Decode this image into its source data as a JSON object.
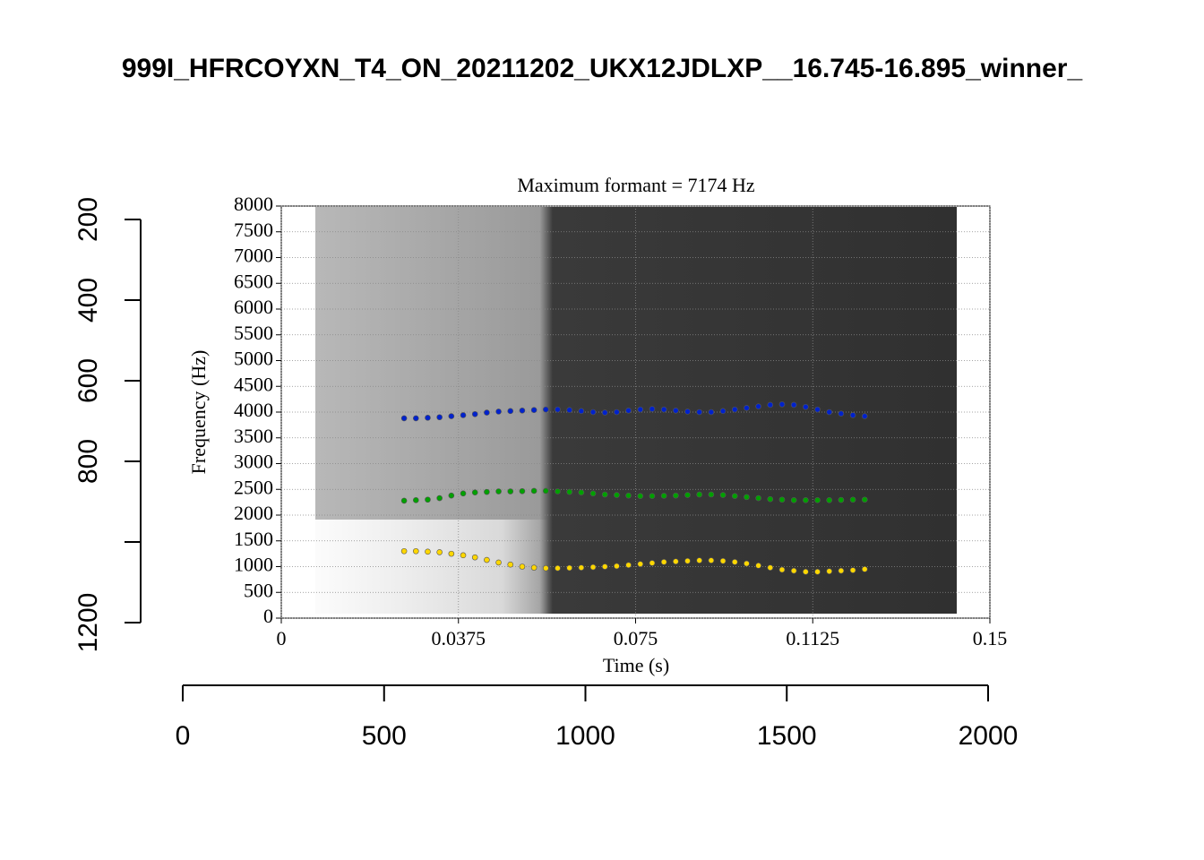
{
  "chart_data": [
    {
      "type": "scatter",
      "title": "Maximum formant = 7174 Hz",
      "xlabel": "Time (s)",
      "ylabel": "Frequency (Hz)",
      "xlim": [
        0,
        0.15
      ],
      "xticks": [
        0,
        0.0375,
        0.075,
        0.1125,
        0.15
      ],
      "ylim": [
        0,
        8000
      ],
      "yticks": [
        0,
        500,
        1000,
        1500,
        2000,
        2500,
        3000,
        3500,
        4000,
        4500,
        5000,
        5500,
        6000,
        6500,
        7000,
        7500,
        8000
      ],
      "grid": true,
      "x": [
        0.026,
        0.0285,
        0.031,
        0.0335,
        0.036,
        0.0385,
        0.041,
        0.0435,
        0.046,
        0.0485,
        0.051,
        0.0535,
        0.056,
        0.0585,
        0.061,
        0.0635,
        0.066,
        0.0685,
        0.071,
        0.0735,
        0.076,
        0.0785,
        0.081,
        0.0835,
        0.086,
        0.0885,
        0.091,
        0.0935,
        0.096,
        0.0985,
        0.101,
        0.1035,
        0.106,
        0.1085,
        0.111,
        0.1135,
        0.116,
        0.1185,
        0.121,
        0.1235
      ],
      "series": [
        {
          "color": "#ffd700",
          "values": [
            1300,
            1300,
            1290,
            1280,
            1250,
            1220,
            1180,
            1130,
            1080,
            1040,
            1000,
            980,
            970,
            970,
            975,
            980,
            990,
            1000,
            1010,
            1030,
            1050,
            1070,
            1090,
            1100,
            1110,
            1120,
            1120,
            1110,
            1090,
            1060,
            1020,
            980,
            940,
            920,
            900,
            900,
            910,
            920,
            930,
            950
          ]
        },
        {
          "color": "#00a000",
          "values": [
            2280,
            2290,
            2300,
            2330,
            2380,
            2420,
            2440,
            2450,
            2460,
            2460,
            2465,
            2470,
            2470,
            2460,
            2450,
            2440,
            2420,
            2400,
            2390,
            2380,
            2370,
            2370,
            2375,
            2380,
            2390,
            2400,
            2400,
            2390,
            2370,
            2350,
            2330,
            2310,
            2300,
            2290,
            2290,
            2290,
            2290,
            2295,
            2300,
            2300
          ]
        },
        {
          "color": "#0022cc",
          "values": [
            3880,
            3880,
            3890,
            3900,
            3920,
            3940,
            3960,
            3990,
            4010,
            4020,
            4030,
            4040,
            4050,
            4050,
            4040,
            4020,
            4000,
            3990,
            4000,
            4030,
            4050,
            4060,
            4050,
            4030,
            4010,
            4000,
            4000,
            4020,
            4050,
            4080,
            4110,
            4140,
            4150,
            4140,
            4100,
            4050,
            4000,
            3970,
            3940,
            3920
          ]
        }
      ]
    },
    {
      "type": "frame",
      "title": "999I_HFRCOYXN_T4_ON_20211202_UKX12JDLXP__16.745-16.895_winner_",
      "xlim": [
        0,
        2000
      ],
      "xticks": [
        0,
        500,
        1000,
        1500,
        2000
      ],
      "ylim": [
        1200,
        200
      ],
      "yticks": [
        200,
        400,
        600,
        800,
        {
          "value": 1000,
          "label": null
        },
        1200
      ]
    }
  ]
}
